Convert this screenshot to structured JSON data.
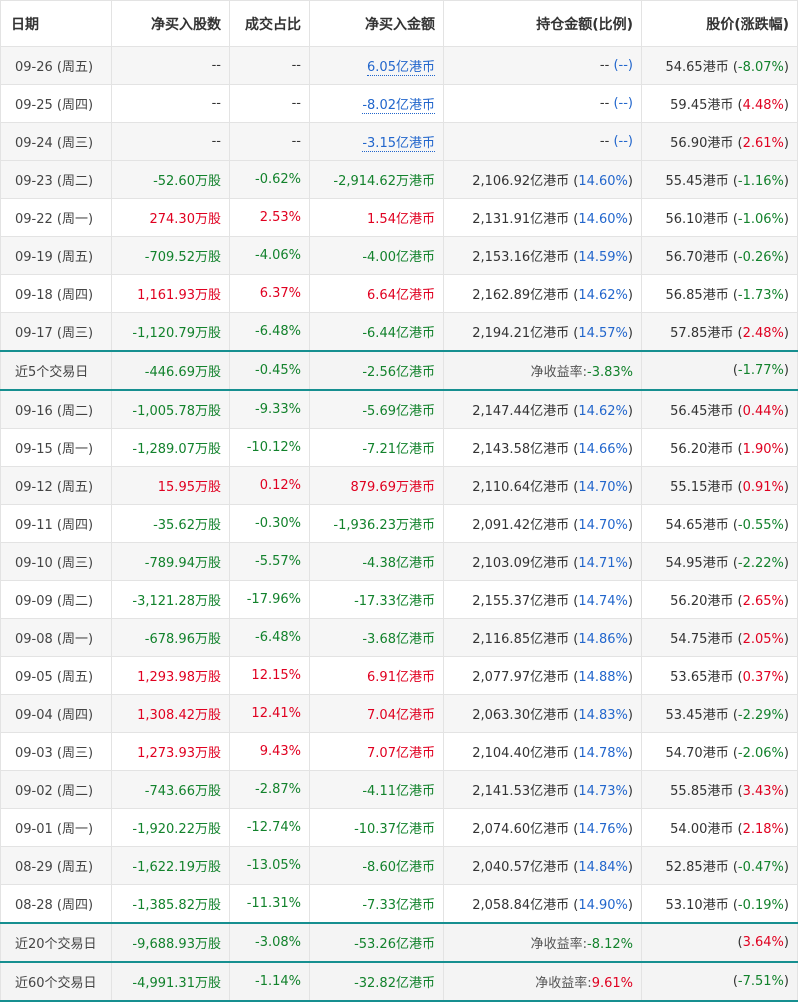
{
  "headers": [
    "日期",
    "净买入股数",
    "成交占比",
    "净买入金额",
    "持仓金额(比例)",
    "股价(涨跌幅)"
  ],
  "units": {
    "wan_gu": "万股",
    "yi_hkd": "亿港币",
    "wan_hkd": "万港币",
    "hkd": "港币"
  },
  "rows": [
    {
      "date": "09-26 (周五)",
      "shares": "--",
      "ratio": "--",
      "amount": "6.05",
      "amountUnit": "亿港币",
      "amountType": "link-pos",
      "holding": "--",
      "holdPct": "--",
      "price": "54.65",
      "chg": "-8.07%",
      "chgType": "neg"
    },
    {
      "date": "09-25 (周四)",
      "shares": "--",
      "ratio": "--",
      "amount": "-8.02",
      "amountUnit": "亿港币",
      "amountType": "link-neg",
      "holding": "--",
      "holdPct": "--",
      "price": "59.45",
      "chg": "4.48%",
      "chgType": "pos"
    },
    {
      "date": "09-24 (周三)",
      "shares": "--",
      "ratio": "--",
      "amount": "-3.15",
      "amountUnit": "亿港币",
      "amountType": "link-neg",
      "holding": "--",
      "holdPct": "--",
      "price": "56.90",
      "chg": "2.61%",
      "chgType": "pos"
    },
    {
      "date": "09-23 (周二)",
      "shares": "-52.60",
      "ratio": "-0.62%",
      "amount": "-2,914.62",
      "amountUnit": "万港币",
      "amountType": "neg",
      "holding": "2,106.92",
      "holdPct": "14.60%",
      "price": "55.45",
      "chg": "-1.16%",
      "chgType": "neg"
    },
    {
      "date": "09-22 (周一)",
      "shares": "274.30",
      "ratio": "2.53%",
      "amount": "1.54",
      "amountUnit": "亿港币",
      "amountType": "pos",
      "holding": "2,131.91",
      "holdPct": "14.60%",
      "price": "56.10",
      "chg": "-1.06%",
      "chgType": "neg"
    },
    {
      "date": "09-19 (周五)",
      "shares": "-709.52",
      "ratio": "-4.06%",
      "amount": "-4.00",
      "amountUnit": "亿港币",
      "amountType": "neg",
      "holding": "2,153.16",
      "holdPct": "14.59%",
      "price": "56.70",
      "chg": "-0.26%",
      "chgType": "neg"
    },
    {
      "date": "09-18 (周四)",
      "shares": "1,161.93",
      "ratio": "6.37%",
      "amount": "6.64",
      "amountUnit": "亿港币",
      "amountType": "pos",
      "holding": "2,162.89",
      "holdPct": "14.62%",
      "price": "56.85",
      "chg": "-1.73%",
      "chgType": "neg"
    },
    {
      "date": "09-17 (周三)",
      "shares": "-1,120.79",
      "ratio": "-6.48%",
      "amount": "-6.44",
      "amountUnit": "亿港币",
      "amountType": "neg",
      "holding": "2,194.21",
      "holdPct": "14.57%",
      "price": "57.85",
      "chg": "2.48%",
      "chgType": "pos"
    },
    {
      "summary": true,
      "date": "近5个交易日",
      "shares": "-446.69",
      "ratio": "-0.45%",
      "amount": "-2.56",
      "amountUnit": "亿港币",
      "amountType": "neg",
      "retLabel": "净收益率:",
      "ret": "-3.83%",
      "retType": "neg",
      "chg": "-1.77%",
      "chgType": "neg"
    },
    {
      "date": "09-16 (周二)",
      "shares": "-1,005.78",
      "ratio": "-9.33%",
      "amount": "-5.69",
      "amountUnit": "亿港币",
      "amountType": "neg",
      "holding": "2,147.44",
      "holdPct": "14.62%",
      "price": "56.45",
      "chg": "0.44%",
      "chgType": "pos"
    },
    {
      "date": "09-15 (周一)",
      "shares": "-1,289.07",
      "ratio": "-10.12%",
      "amount": "-7.21",
      "amountUnit": "亿港币",
      "amountType": "neg",
      "holding": "2,143.58",
      "holdPct": "14.66%",
      "price": "56.20",
      "chg": "1.90%",
      "chgType": "pos"
    },
    {
      "date": "09-12 (周五)",
      "shares": "15.95",
      "ratio": "0.12%",
      "amount": "879.69",
      "amountUnit": "万港币",
      "amountType": "pos",
      "holding": "2,110.64",
      "holdPct": "14.70%",
      "price": "55.15",
      "chg": "0.91%",
      "chgType": "pos"
    },
    {
      "date": "09-11 (周四)",
      "shares": "-35.62",
      "ratio": "-0.30%",
      "amount": "-1,936.23",
      "amountUnit": "万港币",
      "amountType": "neg",
      "holding": "2,091.42",
      "holdPct": "14.70%",
      "price": "54.65",
      "chg": "-0.55%",
      "chgType": "neg"
    },
    {
      "date": "09-10 (周三)",
      "shares": "-789.94",
      "ratio": "-5.57%",
      "amount": "-4.38",
      "amountUnit": "亿港币",
      "amountType": "neg",
      "holding": "2,103.09",
      "holdPct": "14.71%",
      "price": "54.95",
      "chg": "-2.22%",
      "chgType": "neg"
    },
    {
      "date": "09-09 (周二)",
      "shares": "-3,121.28",
      "ratio": "-17.96%",
      "amount": "-17.33",
      "amountUnit": "亿港币",
      "amountType": "neg",
      "holding": "2,155.37",
      "holdPct": "14.74%",
      "price": "56.20",
      "chg": "2.65%",
      "chgType": "pos"
    },
    {
      "date": "09-08 (周一)",
      "shares": "-678.96",
      "ratio": "-6.48%",
      "amount": "-3.68",
      "amountUnit": "亿港币",
      "amountType": "neg",
      "holding": "2,116.85",
      "holdPct": "14.86%",
      "price": "54.75",
      "chg": "2.05%",
      "chgType": "pos"
    },
    {
      "date": "09-05 (周五)",
      "shares": "1,293.98",
      "ratio": "12.15%",
      "amount": "6.91",
      "amountUnit": "亿港币",
      "amountType": "pos",
      "holding": "2,077.97",
      "holdPct": "14.88%",
      "price": "53.65",
      "chg": "0.37%",
      "chgType": "pos"
    },
    {
      "date": "09-04 (周四)",
      "shares": "1,308.42",
      "ratio": "12.41%",
      "amount": "7.04",
      "amountUnit": "亿港币",
      "amountType": "pos",
      "holding": "2,063.30",
      "holdPct": "14.83%",
      "price": "53.45",
      "chg": "-2.29%",
      "chgType": "neg"
    },
    {
      "date": "09-03 (周三)",
      "shares": "1,273.93",
      "ratio": "9.43%",
      "amount": "7.07",
      "amountUnit": "亿港币",
      "amountType": "pos",
      "holding": "2,104.40",
      "holdPct": "14.78%",
      "price": "54.70",
      "chg": "-2.06%",
      "chgType": "neg"
    },
    {
      "date": "09-02 (周二)",
      "shares": "-743.66",
      "ratio": "-2.87%",
      "amount": "-4.11",
      "amountUnit": "亿港币",
      "amountType": "neg",
      "holding": "2,141.53",
      "holdPct": "14.73%",
      "price": "55.85",
      "chg": "3.43%",
      "chgType": "pos"
    },
    {
      "date": "09-01 (周一)",
      "shares": "-1,920.22",
      "ratio": "-12.74%",
      "amount": "-10.37",
      "amountUnit": "亿港币",
      "amountType": "neg",
      "holding": "2,074.60",
      "holdPct": "14.76%",
      "price": "54.00",
      "chg": "2.18%",
      "chgType": "pos"
    },
    {
      "date": "08-29 (周五)",
      "shares": "-1,622.19",
      "ratio": "-13.05%",
      "amount": "-8.60",
      "amountUnit": "亿港币",
      "amountType": "neg",
      "holding": "2,040.57",
      "holdPct": "14.84%",
      "price": "52.85",
      "chg": "-0.47%",
      "chgType": "neg"
    },
    {
      "date": "08-28 (周四)",
      "shares": "-1,385.82",
      "ratio": "-11.31%",
      "amount": "-7.33",
      "amountUnit": "亿港币",
      "amountType": "neg",
      "holding": "2,058.84",
      "holdPct": "14.90%",
      "price": "53.10",
      "chg": "-0.19%",
      "chgType": "neg"
    },
    {
      "summary": true,
      "date": "近20个交易日",
      "shares": "-9,688.93",
      "ratio": "-3.08%",
      "amount": "-53.26",
      "amountUnit": "亿港币",
      "amountType": "neg",
      "retLabel": "净收益率:",
      "ret": "-8.12%",
      "retType": "neg",
      "chg": "3.64%",
      "chgType": "pos"
    },
    {
      "summary": true,
      "date": "近60个交易日",
      "shares": "-4,991.31",
      "ratio": "-1.14%",
      "amount": "-32.82",
      "amountUnit": "亿港币",
      "amountType": "neg",
      "retLabel": "净收益率:",
      "ret": "9.61%",
      "retType": "pos",
      "chg": "-7.51%",
      "chgType": "neg"
    }
  ],
  "colors": {
    "pos": "#e00020",
    "neg": "#12822c",
    "link": "#2266cc",
    "separator": "#168f90"
  }
}
